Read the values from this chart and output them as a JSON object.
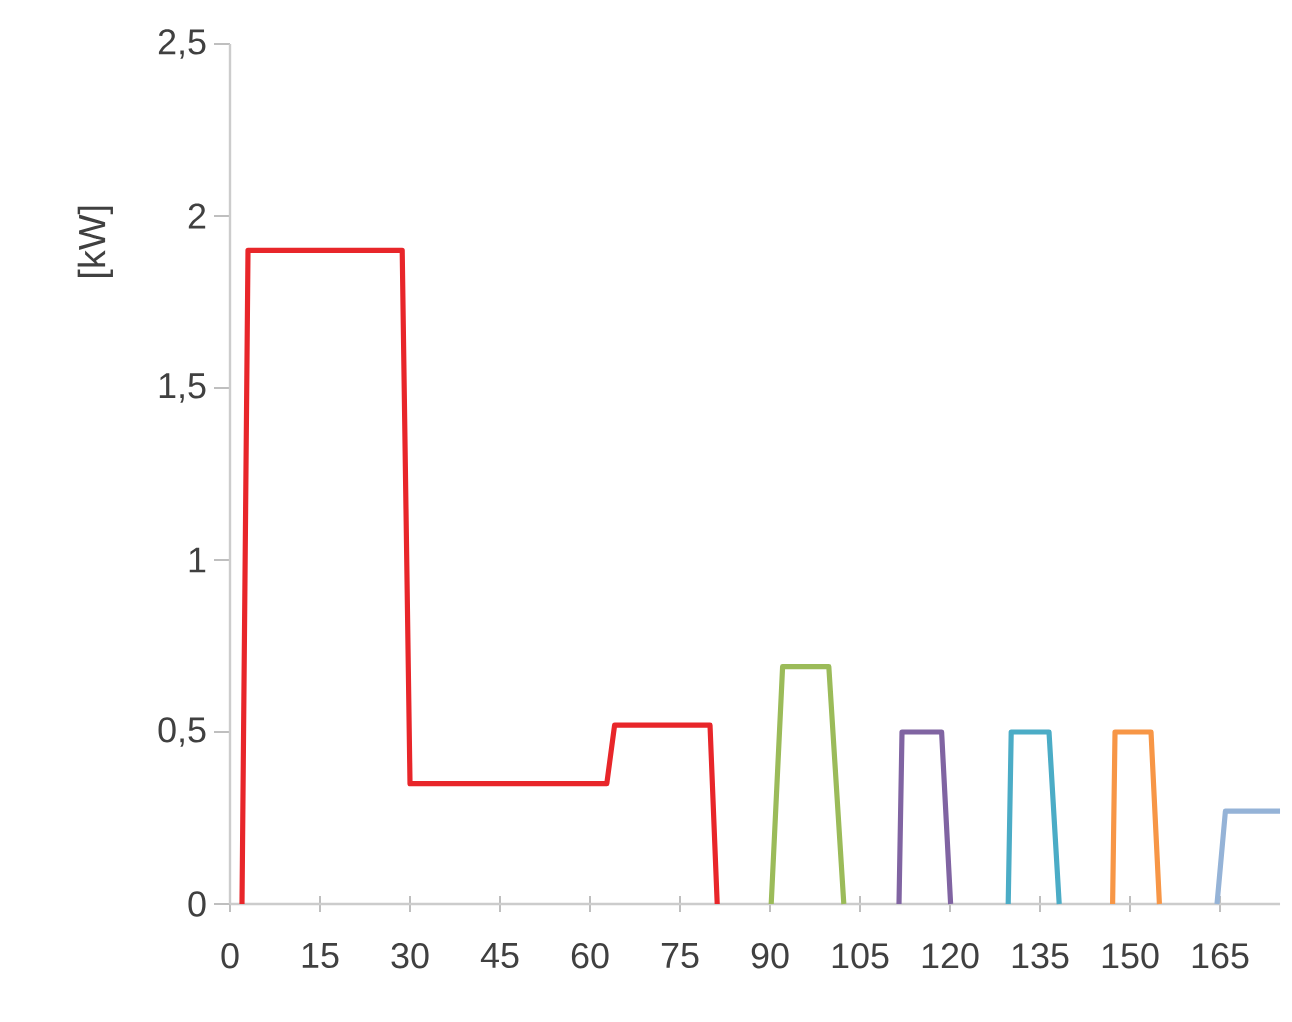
{
  "chart_data": {
    "type": "line",
    "ylabel": "[kW]",
    "xlim": [
      0,
      175
    ],
    "ylim": [
      0,
      2.5
    ],
    "xticks": [
      0,
      15,
      30,
      45,
      60,
      75,
      90,
      105,
      120,
      135,
      150,
      165
    ],
    "yticks": [
      0,
      {
        "value": 0.5,
        "label": "0,5"
      },
      1,
      {
        "value": 1.5,
        "label": "1,5"
      },
      2,
      {
        "value": 2.5,
        "label": "2,5"
      }
    ],
    "series": [
      {
        "color": "#e8262a",
        "x": [
          2,
          3,
          28.7,
          30,
          62.8,
          64.1,
          80,
          81.2
        ],
        "values": [
          0,
          1.9,
          1.9,
          0.35,
          0.35,
          0.52,
          0.52,
          0
        ]
      },
      {
        "color": "#9bbb59",
        "x": [
          90.2,
          92.1,
          99.8,
          102.3
        ],
        "values": [
          0,
          0.69,
          0.69,
          0
        ]
      },
      {
        "color": "#8064a2",
        "x": [
          111.5,
          112,
          118.6,
          120.1
        ],
        "values": [
          0,
          0.5,
          0.5,
          0
        ]
      },
      {
        "color": "#4bacc6",
        "x": [
          129.7,
          130.2,
          136.5,
          138.2
        ],
        "values": [
          0,
          0.5,
          0.5,
          0
        ]
      },
      {
        "color": "#f79646",
        "x": [
          147.1,
          147.5,
          153.5,
          154.9
        ],
        "values": [
          0,
          0.5,
          0.5,
          0
        ]
      },
      {
        "color": "#95b3d7",
        "x": [
          164.5,
          165.9,
          175
        ],
        "values": [
          0,
          0.27,
          0.27
        ]
      }
    ]
  }
}
